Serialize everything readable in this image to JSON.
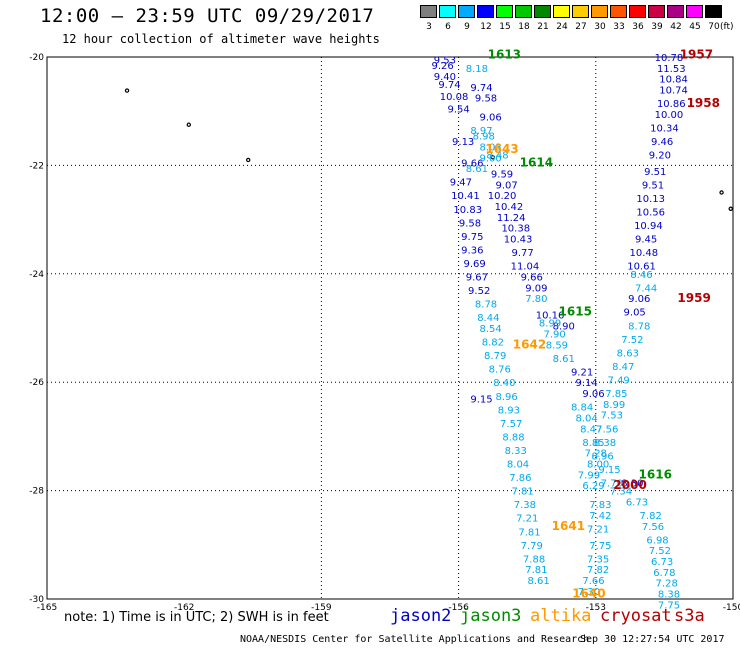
{
  "header": {
    "title": "12:00 — 23:59 UTC 09/29/2017",
    "subtitle": "12 hour collection of altimeter wave heights"
  },
  "legend": {
    "unit": "(ft)",
    "bins": [
      {
        "label": "3",
        "color": "#7f7f7f"
      },
      {
        "label": "6",
        "color": "#00ffff"
      },
      {
        "label": "9",
        "color": "#00aaff"
      },
      {
        "label": "12",
        "color": "#0000ff"
      },
      {
        "label": "15",
        "color": "#00ff00"
      },
      {
        "label": "18",
        "color": "#00c800"
      },
      {
        "label": "21",
        "color": "#008800"
      },
      {
        "label": "24",
        "color": "#ffff00"
      },
      {
        "label": "27",
        "color": "#ffcc00"
      },
      {
        "label": "30",
        "color": "#ff9900"
      },
      {
        "label": "33",
        "color": "#ff5500"
      },
      {
        "label": "36",
        "color": "#ff0000"
      },
      {
        "label": "39",
        "color": "#cc0044"
      },
      {
        "label": "42",
        "color": "#aa0088"
      },
      {
        "label": "45",
        "color": "#ff00ff"
      },
      {
        "label": "70",
        "color": "#000000"
      }
    ]
  },
  "colors": {
    "jason2": "#0000c8",
    "jason3": "#008c00",
    "altika": "#ff9900",
    "cryosat": "#b40000",
    "s3a": "#b40000",
    "light": "#00aaee"
  },
  "map": {
    "lat_ticks": [
      "-20",
      "-22",
      "-24",
      "-26",
      "-28",
      "-30"
    ],
    "lon_ticks": [
      "-165",
      "-162",
      "-159",
      "-156",
      "-153",
      "-150"
    ]
  },
  "tracks": {
    "dark_a": [
      {
        "lon": -156.3,
        "lat": -20.05,
        "v": "9.53"
      },
      {
        "lon": -156.35,
        "lat": -20.15,
        "v": "9.26"
      },
      {
        "lon": -156.3,
        "lat": -20.35,
        "v": "9.40"
      },
      {
        "lon": -156.2,
        "lat": -20.5,
        "v": "9.74"
      },
      {
        "lon": -156.1,
        "lat": -20.72,
        "v": "10.08"
      },
      {
        "lon": -156.0,
        "lat": -20.95,
        "v": "9.54"
      },
      {
        "lon": -155.9,
        "lat": -21.55,
        "v": "9.13"
      },
      {
        "lon": -155.7,
        "lat": -21.95,
        "v": "9.66"
      },
      {
        "lon": -155.95,
        "lat": -22.3,
        "v": "9.47"
      },
      {
        "lon": -155.85,
        "lat": -22.55,
        "v": "10.41"
      },
      {
        "lon": -155.8,
        "lat": -22.8,
        "v": "10.83"
      },
      {
        "lon": -155.75,
        "lat": -23.05,
        "v": "9.58"
      },
      {
        "lon": -155.7,
        "lat": -23.3,
        "v": "9.75"
      },
      {
        "lon": -155.7,
        "lat": -23.55,
        "v": "9.36"
      },
      {
        "lon": -155.65,
        "lat": -23.8,
        "v": "9.69"
      },
      {
        "lon": -155.6,
        "lat": -24.05,
        "v": "9.67"
      },
      {
        "lon": -155.55,
        "lat": -24.3,
        "v": "9.52"
      },
      {
        "lon": -155.5,
        "lat": -26.3,
        "v": "9.15"
      }
    ],
    "dark_b": [
      {
        "lon": -155.5,
        "lat": -20.55,
        "v": "9.74"
      },
      {
        "lon": -155.4,
        "lat": -20.75,
        "v": "9.58"
      },
      {
        "lon": -155.3,
        "lat": -21.1,
        "v": "9.06"
      },
      {
        "lon": -155.05,
        "lat": -22.15,
        "v": "9.59"
      },
      {
        "lon": -154.95,
        "lat": -22.35,
        "v": "9.07"
      },
      {
        "lon": -155.05,
        "lat": -22.55,
        "v": "10.20"
      },
      {
        "lon": -154.9,
        "lat": -22.75,
        "v": "10.42"
      },
      {
        "lon": -154.85,
        "lat": -22.95,
        "v": "11.24"
      },
      {
        "lon": -154.75,
        "lat": -23.15,
        "v": "10.38"
      },
      {
        "lon": -154.7,
        "lat": -23.35,
        "v": "10.43"
      },
      {
        "lon": -154.6,
        "lat": -23.6,
        "v": "9.77"
      },
      {
        "lon": -154.55,
        "lat": -23.85,
        "v": "11.04"
      },
      {
        "lon": -154.4,
        "lat": -24.05,
        "v": "9.66"
      },
      {
        "lon": -154.3,
        "lat": -24.25,
        "v": "9.09"
      },
      {
        "lon": -154.0,
        "lat": -24.75,
        "v": "10.16"
      },
      {
        "lon": -153.7,
        "lat": -24.95,
        "v": "8.90"
      },
      {
        "lon": -153.3,
        "lat": -25.8,
        "v": "9.21"
      },
      {
        "lon": -153.2,
        "lat": -26.0,
        "v": "9.14"
      },
      {
        "lon": -153.05,
        "lat": -26.2,
        "v": "9.06"
      }
    ],
    "dark_c": [
      {
        "lon": -151.4,
        "lat": -20.0,
        "v": "10.78"
      },
      {
        "lon": -151.35,
        "lat": -20.2,
        "v": "11.53"
      },
      {
        "lon": -151.3,
        "lat": -20.4,
        "v": "10.84"
      },
      {
        "lon": -151.3,
        "lat": -20.6,
        "v": "10.74"
      },
      {
        "lon": -151.35,
        "lat": -20.85,
        "v": "10.86"
      },
      {
        "lon": -151.4,
        "lat": -21.05,
        "v": "10.00"
      },
      {
        "lon": -151.5,
        "lat": -21.3,
        "v": "10.34"
      },
      {
        "lon": -151.55,
        "lat": -21.55,
        "v": "9.46"
      },
      {
        "lon": -151.6,
        "lat": -21.8,
        "v": "9.20"
      },
      {
        "lon": -151.7,
        "lat": -22.1,
        "v": "9.51"
      },
      {
        "lon": -151.75,
        "lat": -22.35,
        "v": "9.51"
      },
      {
        "lon": -151.8,
        "lat": -22.6,
        "v": "10.13"
      },
      {
        "lon": -151.8,
        "lat": -22.85,
        "v": "10.56"
      },
      {
        "lon": -151.85,
        "lat": -23.1,
        "v": "10.94"
      },
      {
        "lon": -151.9,
        "lat": -23.35,
        "v": "9.45"
      },
      {
        "lon": -151.95,
        "lat": -23.6,
        "v": "10.48"
      },
      {
        "lon": -152.0,
        "lat": -23.85,
        "v": "10.61"
      },
      {
        "lon": -152.05,
        "lat": -24.45,
        "v": "9.06"
      },
      {
        "lon": -152.15,
        "lat": -24.7,
        "v": "9.05"
      },
      {
        "lon": -152.2,
        "lat": -27.85,
        "v": "8.30"
      }
    ],
    "light_a": [
      {
        "lon": -155.6,
        "lat": -20.2,
        "v": "8.18"
      },
      {
        "lon": -155.5,
        "lat": -21.35,
        "v": "8.97"
      },
      {
        "lon": -155.45,
        "lat": -21.45,
        "v": "8.98"
      },
      {
        "lon": -155.3,
        "lat": -21.65,
        "v": "8.03"
      },
      {
        "lon": -155.15,
        "lat": -21.8,
        "v": "8.48"
      },
      {
        "lon": -155.3,
        "lat": -21.85,
        "v": "9.00"
      },
      {
        "lon": -155.6,
        "lat": -22.05,
        "v": "8.61"
      },
      {
        "lon": -155.4,
        "lat": -24.55,
        "v": "8.78"
      },
      {
        "lon": -155.35,
        "lat": -24.8,
        "v": "8.44"
      },
      {
        "lon": -155.3,
        "lat": -25.0,
        "v": "8.54"
      },
      {
        "lon": -155.25,
        "lat": -25.25,
        "v": "8.82"
      },
      {
        "lon": -155.2,
        "lat": -25.5,
        "v": "8.79"
      },
      {
        "lon": -155.1,
        "lat": -25.75,
        "v": "8.76"
      },
      {
        "lon": -155.0,
        "lat": -26.0,
        "v": "8.40"
      },
      {
        "lon": -154.95,
        "lat": -26.25,
        "v": "8.96"
      },
      {
        "lon": -154.9,
        "lat": -26.5,
        "v": "8.93"
      },
      {
        "lon": -154.85,
        "lat": -26.75,
        "v": "7.57"
      },
      {
        "lon": -154.8,
        "lat": -27.0,
        "v": "8.88"
      },
      {
        "lon": -154.75,
        "lat": -27.25,
        "v": "8.33"
      },
      {
        "lon": -154.7,
        "lat": -27.5,
        "v": "8.04"
      },
      {
        "lon": -154.65,
        "lat": -27.75,
        "v": "7.86"
      },
      {
        "lon": -154.6,
        "lat": -28.0,
        "v": "7.81"
      },
      {
        "lon": -154.55,
        "lat": -28.25,
        "v": "7.38"
      },
      {
        "lon": -154.5,
        "lat": -28.5,
        "v": "7.21"
      },
      {
        "lon": -154.45,
        "lat": -28.75,
        "v": "7.81"
      },
      {
        "lon": -154.4,
        "lat": -29.0,
        "v": "7.79"
      },
      {
        "lon": -154.35,
        "lat": -29.25,
        "v": "7.88"
      },
      {
        "lon": -154.3,
        "lat": -29.45,
        "v": "7.81"
      },
      {
        "lon": -154.25,
        "lat": -29.65,
        "v": "8.61"
      }
    ],
    "light_b": [
      {
        "lon": -154.3,
        "lat": -24.45,
        "v": "7.80"
      },
      {
        "lon": -154.0,
        "lat": -24.9,
        "v": "8.99"
      },
      {
        "lon": -153.9,
        "lat": -25.1,
        "v": "7.90"
      },
      {
        "lon": -153.85,
        "lat": -25.3,
        "v": "8.59"
      },
      {
        "lon": -153.7,
        "lat": -25.55,
        "v": "8.61"
      },
      {
        "lon": -153.3,
        "lat": -26.45,
        "v": "8.84"
      },
      {
        "lon": -153.2,
        "lat": -26.65,
        "v": "8.04"
      },
      {
        "lon": -153.1,
        "lat": -26.85,
        "v": "8.47"
      },
      {
        "lon": -153.05,
        "lat": -27.1,
        "v": "8.85"
      },
      {
        "lon": -153.0,
        "lat": -27.3,
        "v": "7.28"
      },
      {
        "lon": -152.95,
        "lat": -27.5,
        "v": "8.00"
      },
      {
        "lon": -153.15,
        "lat": -27.7,
        "v": "7.99"
      },
      {
        "lon": -153.05,
        "lat": -27.9,
        "v": "6.29"
      },
      {
        "lon": -152.9,
        "lat": -28.25,
        "v": "7.83"
      },
      {
        "lon": -152.9,
        "lat": -28.45,
        "v": "7.42"
      },
      {
        "lon": -152.95,
        "lat": -28.7,
        "v": "7.21"
      },
      {
        "lon": -152.9,
        "lat": -29.0,
        "v": "7.75"
      },
      {
        "lon": -152.95,
        "lat": -29.25,
        "v": "7.35"
      },
      {
        "lon": -152.95,
        "lat": -29.45,
        "v": "7.82"
      },
      {
        "lon": -153.05,
        "lat": -29.65,
        "v": "7.66"
      },
      {
        "lon": -153.15,
        "lat": -29.85,
        "v": "7.30"
      }
    ],
    "light_c": [
      {
        "lon": -152.0,
        "lat": -24.0,
        "v": "8.46"
      },
      {
        "lon": -151.9,
        "lat": -24.25,
        "v": "7.44"
      },
      {
        "lon": -152.05,
        "lat": -24.95,
        "v": "8.78"
      },
      {
        "lon": -152.2,
        "lat": -25.2,
        "v": "7.52"
      },
      {
        "lon": -152.3,
        "lat": -25.45,
        "v": "8.63"
      },
      {
        "lon": -152.4,
        "lat": -25.7,
        "v": "8.47"
      },
      {
        "lon": -152.5,
        "lat": -25.95,
        "v": "7.49"
      },
      {
        "lon": -152.55,
        "lat": -26.2,
        "v": "7.85"
      },
      {
        "lon": -152.6,
        "lat": -26.4,
        "v": "8.99"
      },
      {
        "lon": -152.65,
        "lat": -26.6,
        "v": "7.53"
      },
      {
        "lon": -152.75,
        "lat": -26.85,
        "v": "7.56"
      },
      {
        "lon": -152.8,
        "lat": -27.1,
        "v": "8.38"
      },
      {
        "lon": -152.85,
        "lat": -27.35,
        "v": "8.96"
      },
      {
        "lon": -152.7,
        "lat": -27.6,
        "v": "9.15"
      },
      {
        "lon": -152.65,
        "lat": -27.85,
        "v": "7.70"
      },
      {
        "lon": -152.45,
        "lat": -28.0,
        "v": "7.34"
      },
      {
        "lon": -152.1,
        "lat": -28.2,
        "v": "6.73"
      },
      {
        "lon": -151.8,
        "lat": -28.45,
        "v": "7.82"
      },
      {
        "lon": -151.75,
        "lat": -28.65,
        "v": "7.56"
      },
      {
        "lon": -151.65,
        "lat": -28.9,
        "v": "6.98"
      },
      {
        "lon": -151.6,
        "lat": -29.1,
        "v": "7.52"
      },
      {
        "lon": -151.55,
        "lat": -29.3,
        "v": "6.73"
      },
      {
        "lon": -151.5,
        "lat": -29.5,
        "v": "6.78"
      },
      {
        "lon": -151.45,
        "lat": -29.7,
        "v": "7.28"
      },
      {
        "lon": -151.4,
        "lat": -29.9,
        "v": "8.38"
      },
      {
        "lon": -151.4,
        "lat": -30.1,
        "v": "7.75"
      }
    ]
  },
  "times": [
    {
      "lon": -155.0,
      "lat": -19.95,
      "t": "1613",
      "sat": "jason3"
    },
    {
      "lon": -154.3,
      "lat": -21.95,
      "t": "1614",
      "sat": "jason3"
    },
    {
      "lon": -153.45,
      "lat": -24.7,
      "t": "1615",
      "sat": "jason3"
    },
    {
      "lon": -151.7,
      "lat": -27.7,
      "t": "1616",
      "sat": "jason3"
    },
    {
      "lon": -155.05,
      "lat": -21.7,
      "t": "1643",
      "sat": "altika"
    },
    {
      "lon": -154.45,
      "lat": -25.3,
      "t": "1642",
      "sat": "altika"
    },
    {
      "lon": -153.6,
      "lat": -28.65,
      "t": "1641",
      "sat": "altika"
    },
    {
      "lon": -153.15,
      "lat": -29.9,
      "t": "1640",
      "sat": "altika"
    },
    {
      "lon": -150.8,
      "lat": -19.95,
      "t": "1957",
      "sat": "cryosat"
    },
    {
      "lon": -150.65,
      "lat": -20.85,
      "t": "1958",
      "sat": "cryosat"
    },
    {
      "lon": -150.85,
      "lat": -24.45,
      "t": "1959",
      "sat": "cryosat"
    },
    {
      "lon": -152.25,
      "lat": -27.9,
      "t": "2000",
      "sat": "cryosat"
    }
  ],
  "islands": [
    {
      "lon": -163.25,
      "lat": -20.62
    },
    {
      "lon": -161.9,
      "lat": -21.25
    },
    {
      "lon": -155.25,
      "lat": -21.85
    },
    {
      "lon": -150.25,
      "lat": -22.5
    },
    {
      "lon": -150.05,
      "lat": -22.8
    },
    {
      "lon": -160.6,
      "lat": -21.9
    }
  ],
  "footer": {
    "note": "note: 1) Time is in UTC; 2) SWH is in feet",
    "sat_jason2": "jason2",
    "sat_jason3": "jason3",
    "sat_altika": "altika",
    "sat_cryosat": "cryosat",
    "sat_s3a": "s3a",
    "credit": "NOAA/NESDIS Center for Satellite Applications and Research",
    "timestamp": "Sep 30 12:27:54 UTC 2017"
  }
}
